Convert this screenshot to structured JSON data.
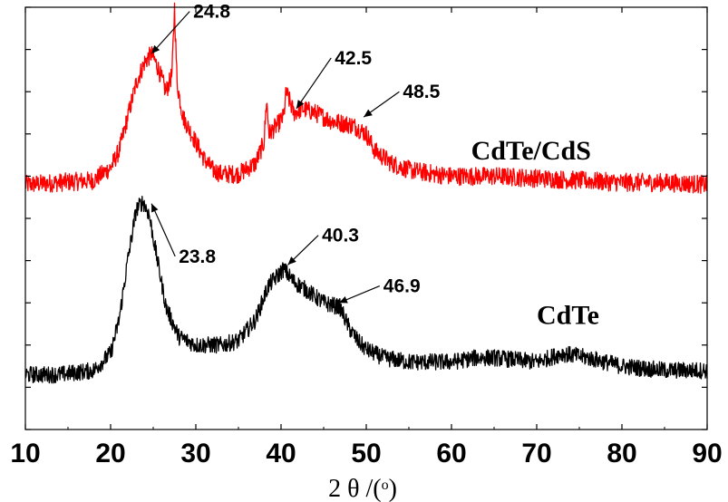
{
  "chart_data": {
    "type": "line",
    "title": "",
    "xlabel": "2 θ /(o)",
    "xlabel_parts": {
      "main": "2 θ /(",
      "sup": "o",
      "close": ")"
    },
    "ylabel": "",
    "xlim": [
      10,
      90
    ],
    "ylim": [
      0,
      100
    ],
    "xticks": [
      10,
      20,
      30,
      40,
      50,
      60,
      70,
      80,
      90
    ],
    "xtick_labels": [
      "10",
      "20",
      "30",
      "40",
      "50",
      "60",
      "70",
      "80",
      "90"
    ],
    "grid": false,
    "y_tick_labels_shown": false,
    "series": [
      {
        "name": "CdTe/CdS",
        "color": "#ff0000",
        "noise": 2.2,
        "x": [
          10,
          14,
          18,
          20,
          21,
          22,
          23,
          24,
          24.8,
          25.5,
          26.5,
          27.2,
          27.5,
          27.8,
          28.5,
          30,
          31,
          32,
          33,
          35,
          37,
          38,
          38.3,
          38.6,
          39.5,
          40.3,
          40.6,
          41.5,
          42.5,
          44,
          46,
          48.5,
          50,
          51,
          53,
          55,
          58,
          60,
          65,
          70,
          75,
          80,
          85,
          90
        ],
        "y": [
          58,
          58.5,
          59,
          62,
          66,
          74,
          82,
          87,
          89,
          86,
          80,
          84,
          100,
          82,
          74,
          68,
          64,
          61.5,
          60.5,
          60.5,
          63,
          68,
          78,
          70,
          72,
          74,
          80,
          75,
          76,
          75,
          73,
          72,
          70,
          66,
          63,
          61.5,
          60.5,
          60,
          60,
          59.5,
          59,
          58.5,
          58.5,
          58
        ]
      },
      {
        "name": "CdTe",
        "color": "#000000",
        "noise": 2.0,
        "x": [
          10,
          14,
          18,
          20,
          21,
          22,
          23,
          23.8,
          24.5,
          25.5,
          26.5,
          28,
          30,
          33,
          35,
          37,
          38.5,
          40.3,
          41.5,
          43,
          45,
          46.9,
          48,
          49,
          50,
          52,
          55,
          58,
          60,
          63,
          65,
          70,
          73,
          76,
          80,
          85,
          90
        ],
        "y": [
          13,
          13,
          14,
          18,
          26,
          40,
          52,
          54,
          51,
          40,
          29,
          22,
          20,
          20,
          21,
          26,
          34,
          38,
          35,
          33,
          30,
          29,
          24,
          21,
          19,
          17,
          16,
          16,
          16,
          17,
          17,
          16,
          18,
          17,
          15,
          14,
          14
        ]
      }
    ],
    "annotations": [
      {
        "text": "24.8",
        "x": 24.8,
        "y": 89,
        "label_x": 29.7,
        "label_y": 99
      },
      {
        "text": "42.5",
        "x": 41.8,
        "y": 76,
        "label_x": 46.3,
        "label_y": 88
      },
      {
        "text": "48.5",
        "x": 49.7,
        "y": 74,
        "label_x": 54.3,
        "label_y": 80
      },
      {
        "text": "23.8",
        "x": 24.8,
        "y": 53.5,
        "label_x": 28.0,
        "label_y": 41
      },
      {
        "text": "40.3",
        "x": 40.8,
        "y": 39,
        "label_x": 44.8,
        "label_y": 46
      },
      {
        "text": "46.9",
        "x": 46.8,
        "y": 30,
        "label_x": 52.0,
        "label_y": 34
      }
    ],
    "series_labels": [
      {
        "text": "CdTe/CdS",
        "x": 62.3,
        "y": 64
      },
      {
        "text": "CdTe",
        "x": 70.0,
        "y": 25
      }
    ]
  }
}
